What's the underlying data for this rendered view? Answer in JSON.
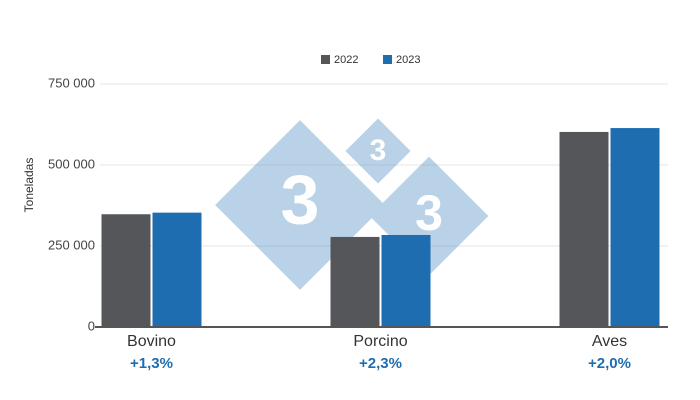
{
  "chart_data": {
    "type": "bar",
    "y_label": "Toneladas",
    "categories": [
      "Bovino",
      "Porcino",
      "Aves"
    ],
    "annotations": [
      "+1,3%",
      "+2,3%",
      "+2,0%"
    ],
    "series": [
      {
        "name": "2022",
        "color": "#54565a",
        "values": [
          348000,
          278000,
          602000
        ]
      },
      {
        "name": "2023",
        "color": "#1f6db1",
        "values": [
          353000,
          284000,
          614000
        ]
      }
    ],
    "ylim": [
      0,
      750000
    ],
    "yticks": [
      {
        "value": 0,
        "label": "0"
      },
      {
        "value": 250000,
        "label": "250 000"
      },
      {
        "value": 500000,
        "label": "500 000"
      },
      {
        "value": 750000,
        "label": "750 000"
      }
    ],
    "grid": true,
    "legend": "top",
    "watermark": "3"
  }
}
